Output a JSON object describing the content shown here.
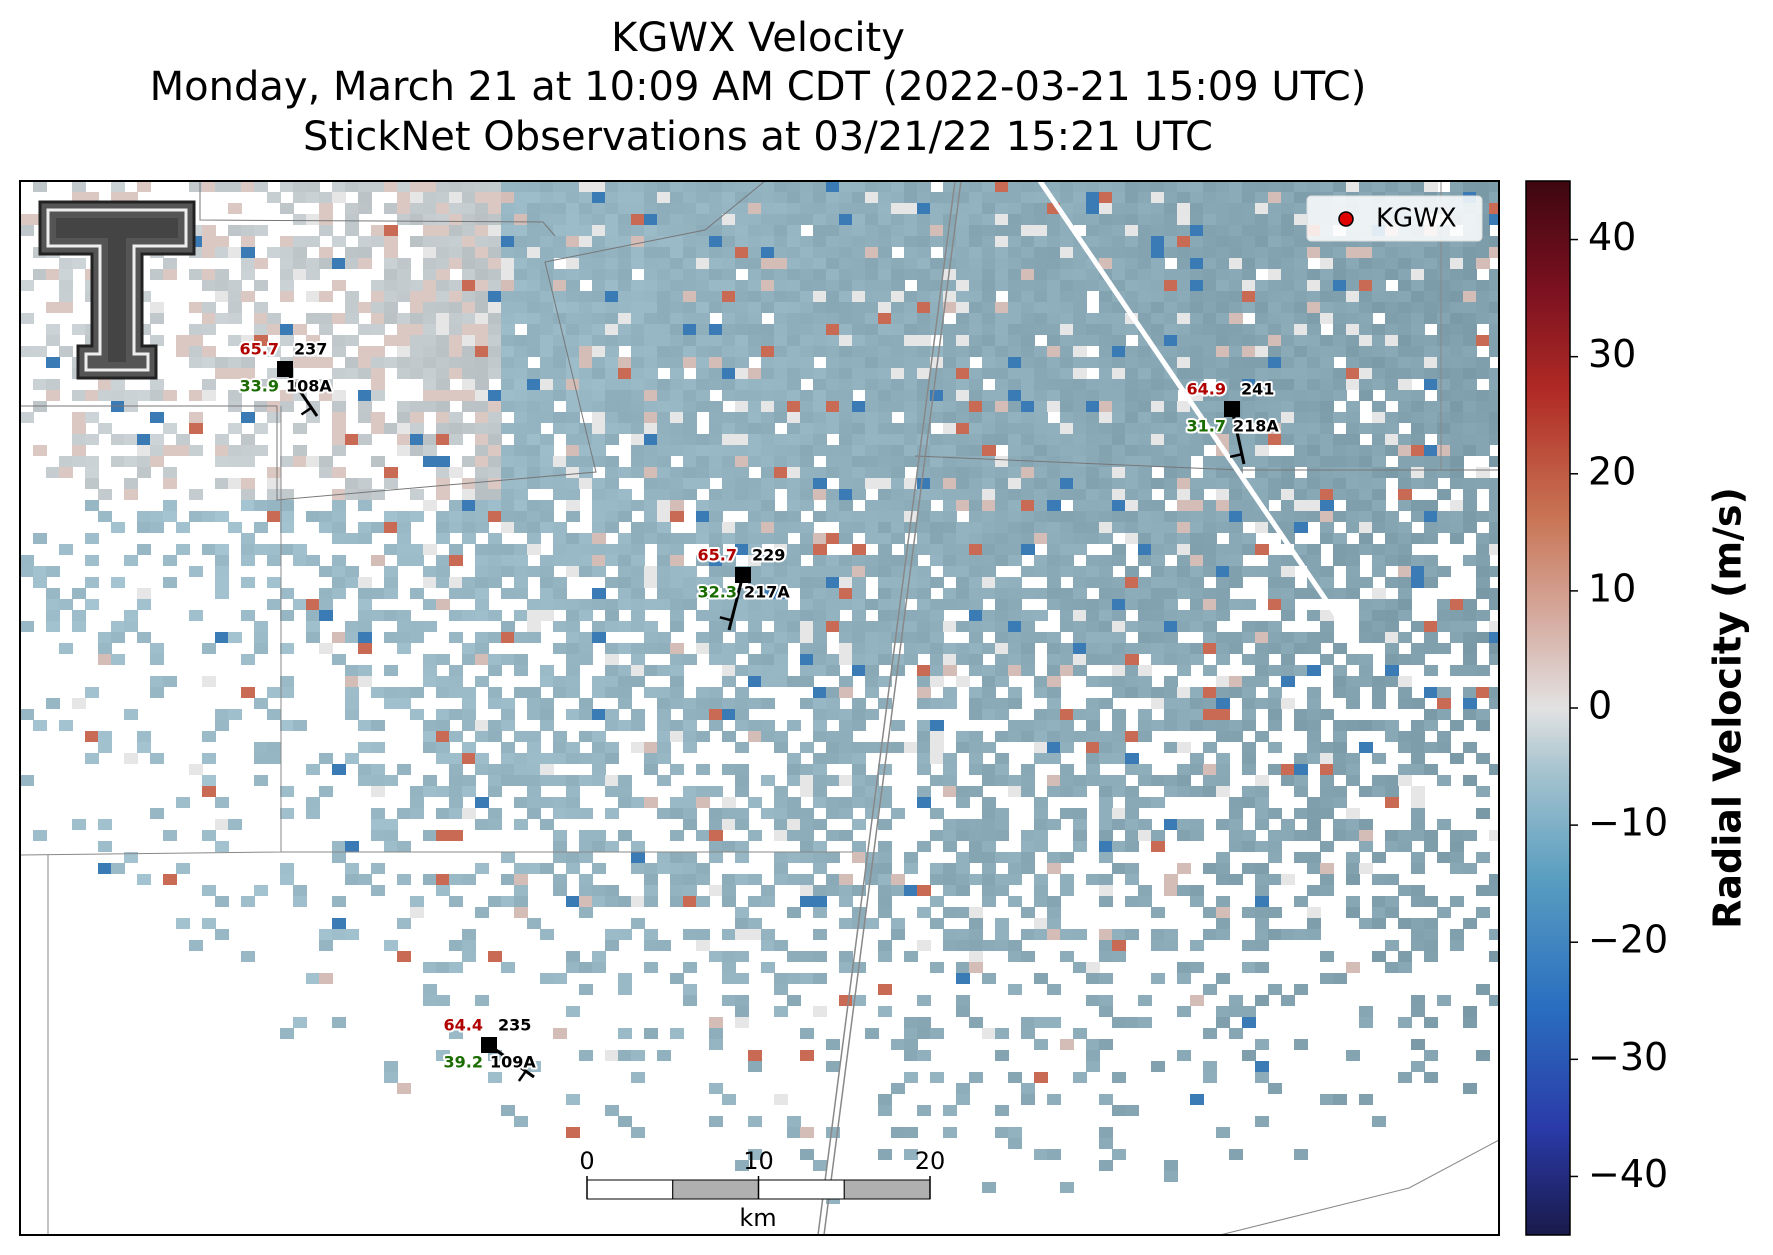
{
  "title": {
    "line1": "KGWX Velocity",
    "line2": "Monday, March 21 at 10:09 AM CDT (2022-03-21 15:09 UTC)",
    "line3": "StickNet Observations at 03/21/22 15:21 UTC"
  },
  "legend": {
    "label": "KGWX",
    "color": "#e00000"
  },
  "colorbar": {
    "label": "Radial Velocity (m/s)",
    "vlim": [
      -45,
      45
    ],
    "ticks": [
      {
        "value": -40,
        "label": "−40"
      },
      {
        "value": -30,
        "label": "−30"
      },
      {
        "value": -20,
        "label": "−20"
      },
      {
        "value": -10,
        "label": "−10"
      },
      0,
      10,
      20,
      30,
      40
    ]
  },
  "scale_bar": {
    "unit": "km",
    "xlim": [
      0,
      20
    ],
    "ticks": [
      0,
      10,
      20
    ]
  },
  "stations": [
    {
      "id": "108A",
      "temperature": 65.7,
      "direction": 237,
      "dewpoint": 33.9
    },
    {
      "id": "217A",
      "temperature": 65.7,
      "direction": 229,
      "dewpoint": 32.3
    },
    {
      "id": "218A",
      "temperature": 64.9,
      "direction": 241,
      "dewpoint": 31.7
    },
    {
      "id": "109A",
      "temperature": 64.4,
      "direction": 235,
      "dewpoint": 39.2
    }
  ]
}
